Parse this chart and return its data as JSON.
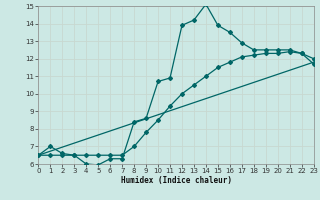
{
  "xlabel": "Humidex (Indice chaleur)",
  "xlim": [
    0,
    23
  ],
  "ylim": [
    6,
    15
  ],
  "xticks": [
    0,
    1,
    2,
    3,
    4,
    5,
    6,
    7,
    8,
    9,
    10,
    11,
    12,
    13,
    14,
    15,
    16,
    17,
    18,
    19,
    20,
    21,
    22,
    23
  ],
  "yticks": [
    6,
    7,
    8,
    9,
    10,
    11,
    12,
    13,
    14,
    15
  ],
  "bg_color": "#cce8e4",
  "line_color": "#006666",
  "grid_color": "#c8d8d0",
  "curve1_x": [
    0,
    1,
    2,
    3,
    4,
    5,
    6,
    7,
    8,
    9,
    10,
    11,
    12,
    13,
    14,
    15,
    16,
    17,
    18,
    19,
    20,
    21,
    22,
    23
  ],
  "curve1_y": [
    6.5,
    7.0,
    6.6,
    6.5,
    6.0,
    5.95,
    6.3,
    6.3,
    8.4,
    8.6,
    10.7,
    10.9,
    13.9,
    14.2,
    15.1,
    13.9,
    13.5,
    12.9,
    12.5,
    12.5,
    12.5,
    12.5,
    12.3,
    11.7
  ],
  "curve2_x": [
    0,
    1,
    2,
    3,
    4,
    5,
    6,
    7,
    8,
    9,
    10,
    11,
    12,
    13,
    14,
    15,
    16,
    17,
    18,
    19,
    20,
    21,
    22,
    23
  ],
  "curve2_y": [
    6.5,
    6.5,
    6.5,
    6.5,
    6.5,
    6.5,
    6.5,
    6.5,
    7.0,
    7.8,
    8.5,
    9.3,
    10.0,
    10.5,
    11.0,
    11.5,
    11.8,
    12.1,
    12.2,
    12.3,
    12.3,
    12.4,
    12.3,
    12.0
  ],
  "line3_x": [
    0,
    23
  ],
  "line3_y": [
    6.5,
    11.8
  ]
}
